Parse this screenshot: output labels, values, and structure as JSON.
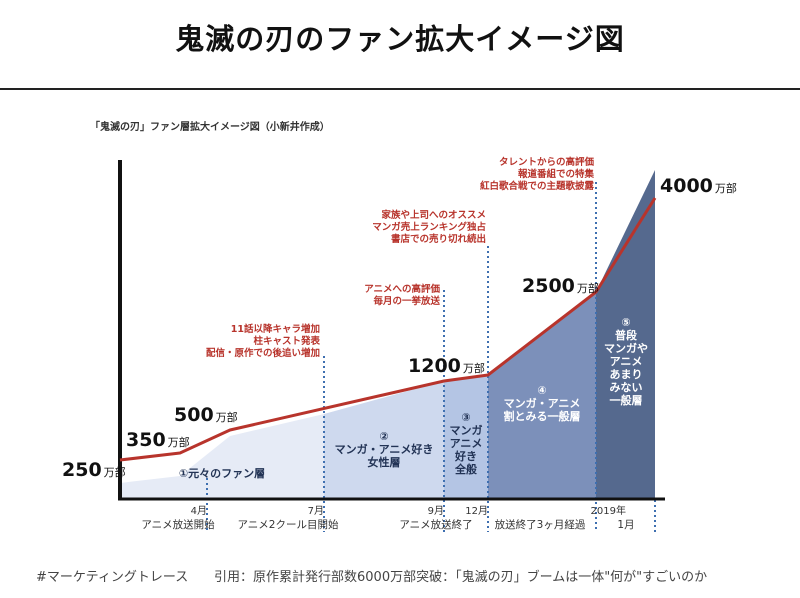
{
  "header": {
    "title": "鬼滅の刃のファン拡大イメージ図"
  },
  "chart_data": {
    "type": "line",
    "title": "「鬼滅の刃」ファン層拡大イメージ図（小新井作成）",
    "unit": "万部",
    "points": [
      {
        "value": "250"
      },
      {
        "value": "350"
      },
      {
        "value": "500"
      },
      {
        "value": "1200"
      },
      {
        "value": "2500"
      },
      {
        "value": "4000"
      }
    ],
    "milestones": [
      {
        "line1": "4月",
        "line2": "アニメ放送開始"
      },
      {
        "line1": "7月",
        "line2": "アニメ2クール目開始"
      },
      {
        "line1": "9月",
        "line2": "アニメ放送終了"
      },
      {
        "line1": "12月",
        "line2": "放送終了3ヶ月経過"
      },
      {
        "line1": "2019年",
        "line2": "1月"
      }
    ],
    "annotations": [
      {
        "lines": [
          "11話以降キャラ増加",
          "柱キャスト発表",
          "配信・原作での後追い増加"
        ]
      },
      {
        "lines": [
          "アニメへの高評価",
          "毎月の一挙放送"
        ]
      },
      {
        "lines": [
          "家族や上司へのオススメ",
          "マンガ売上ランキング独占",
          "書店での売り切れ続出"
        ]
      },
      {
        "lines": [
          "タレントからの高評価",
          "報道番組での特集",
          "紅白歌合戦での主題歌披露"
        ]
      }
    ],
    "segments": [
      {
        "lines": [
          "①元々のファン層"
        ]
      },
      {
        "lines": [
          "②",
          "マンガ・アニメ好き",
          "女性層"
        ]
      },
      {
        "lines": [
          "③",
          "マンガ",
          "アニメ",
          "好き",
          "全般"
        ]
      },
      {
        "lines": [
          "④",
          "マンガ・アニメ",
          "割とみる一般層"
        ]
      },
      {
        "lines": [
          "⑤",
          "普段",
          "マンガや",
          "アニメ",
          "あまり",
          "みない",
          "一般層"
        ]
      }
    ],
    "colors": {
      "line": "#b8342c",
      "annotation_text": "#b8342c",
      "dotted": "#3e6fb0",
      "axis": "#111111",
      "seg1": "#e6ebf6",
      "seg2": "#ced9ee",
      "seg3": "#b4c5e4",
      "seg4": "#7c90ba",
      "seg5": "#55698e"
    }
  },
  "footer": {
    "hashtag": "#マーケティングトレース",
    "citation": "引用：原作累計発行部数6000万部突破：「鬼滅の刃」ブームは一体\"何が\"すごいのか"
  }
}
